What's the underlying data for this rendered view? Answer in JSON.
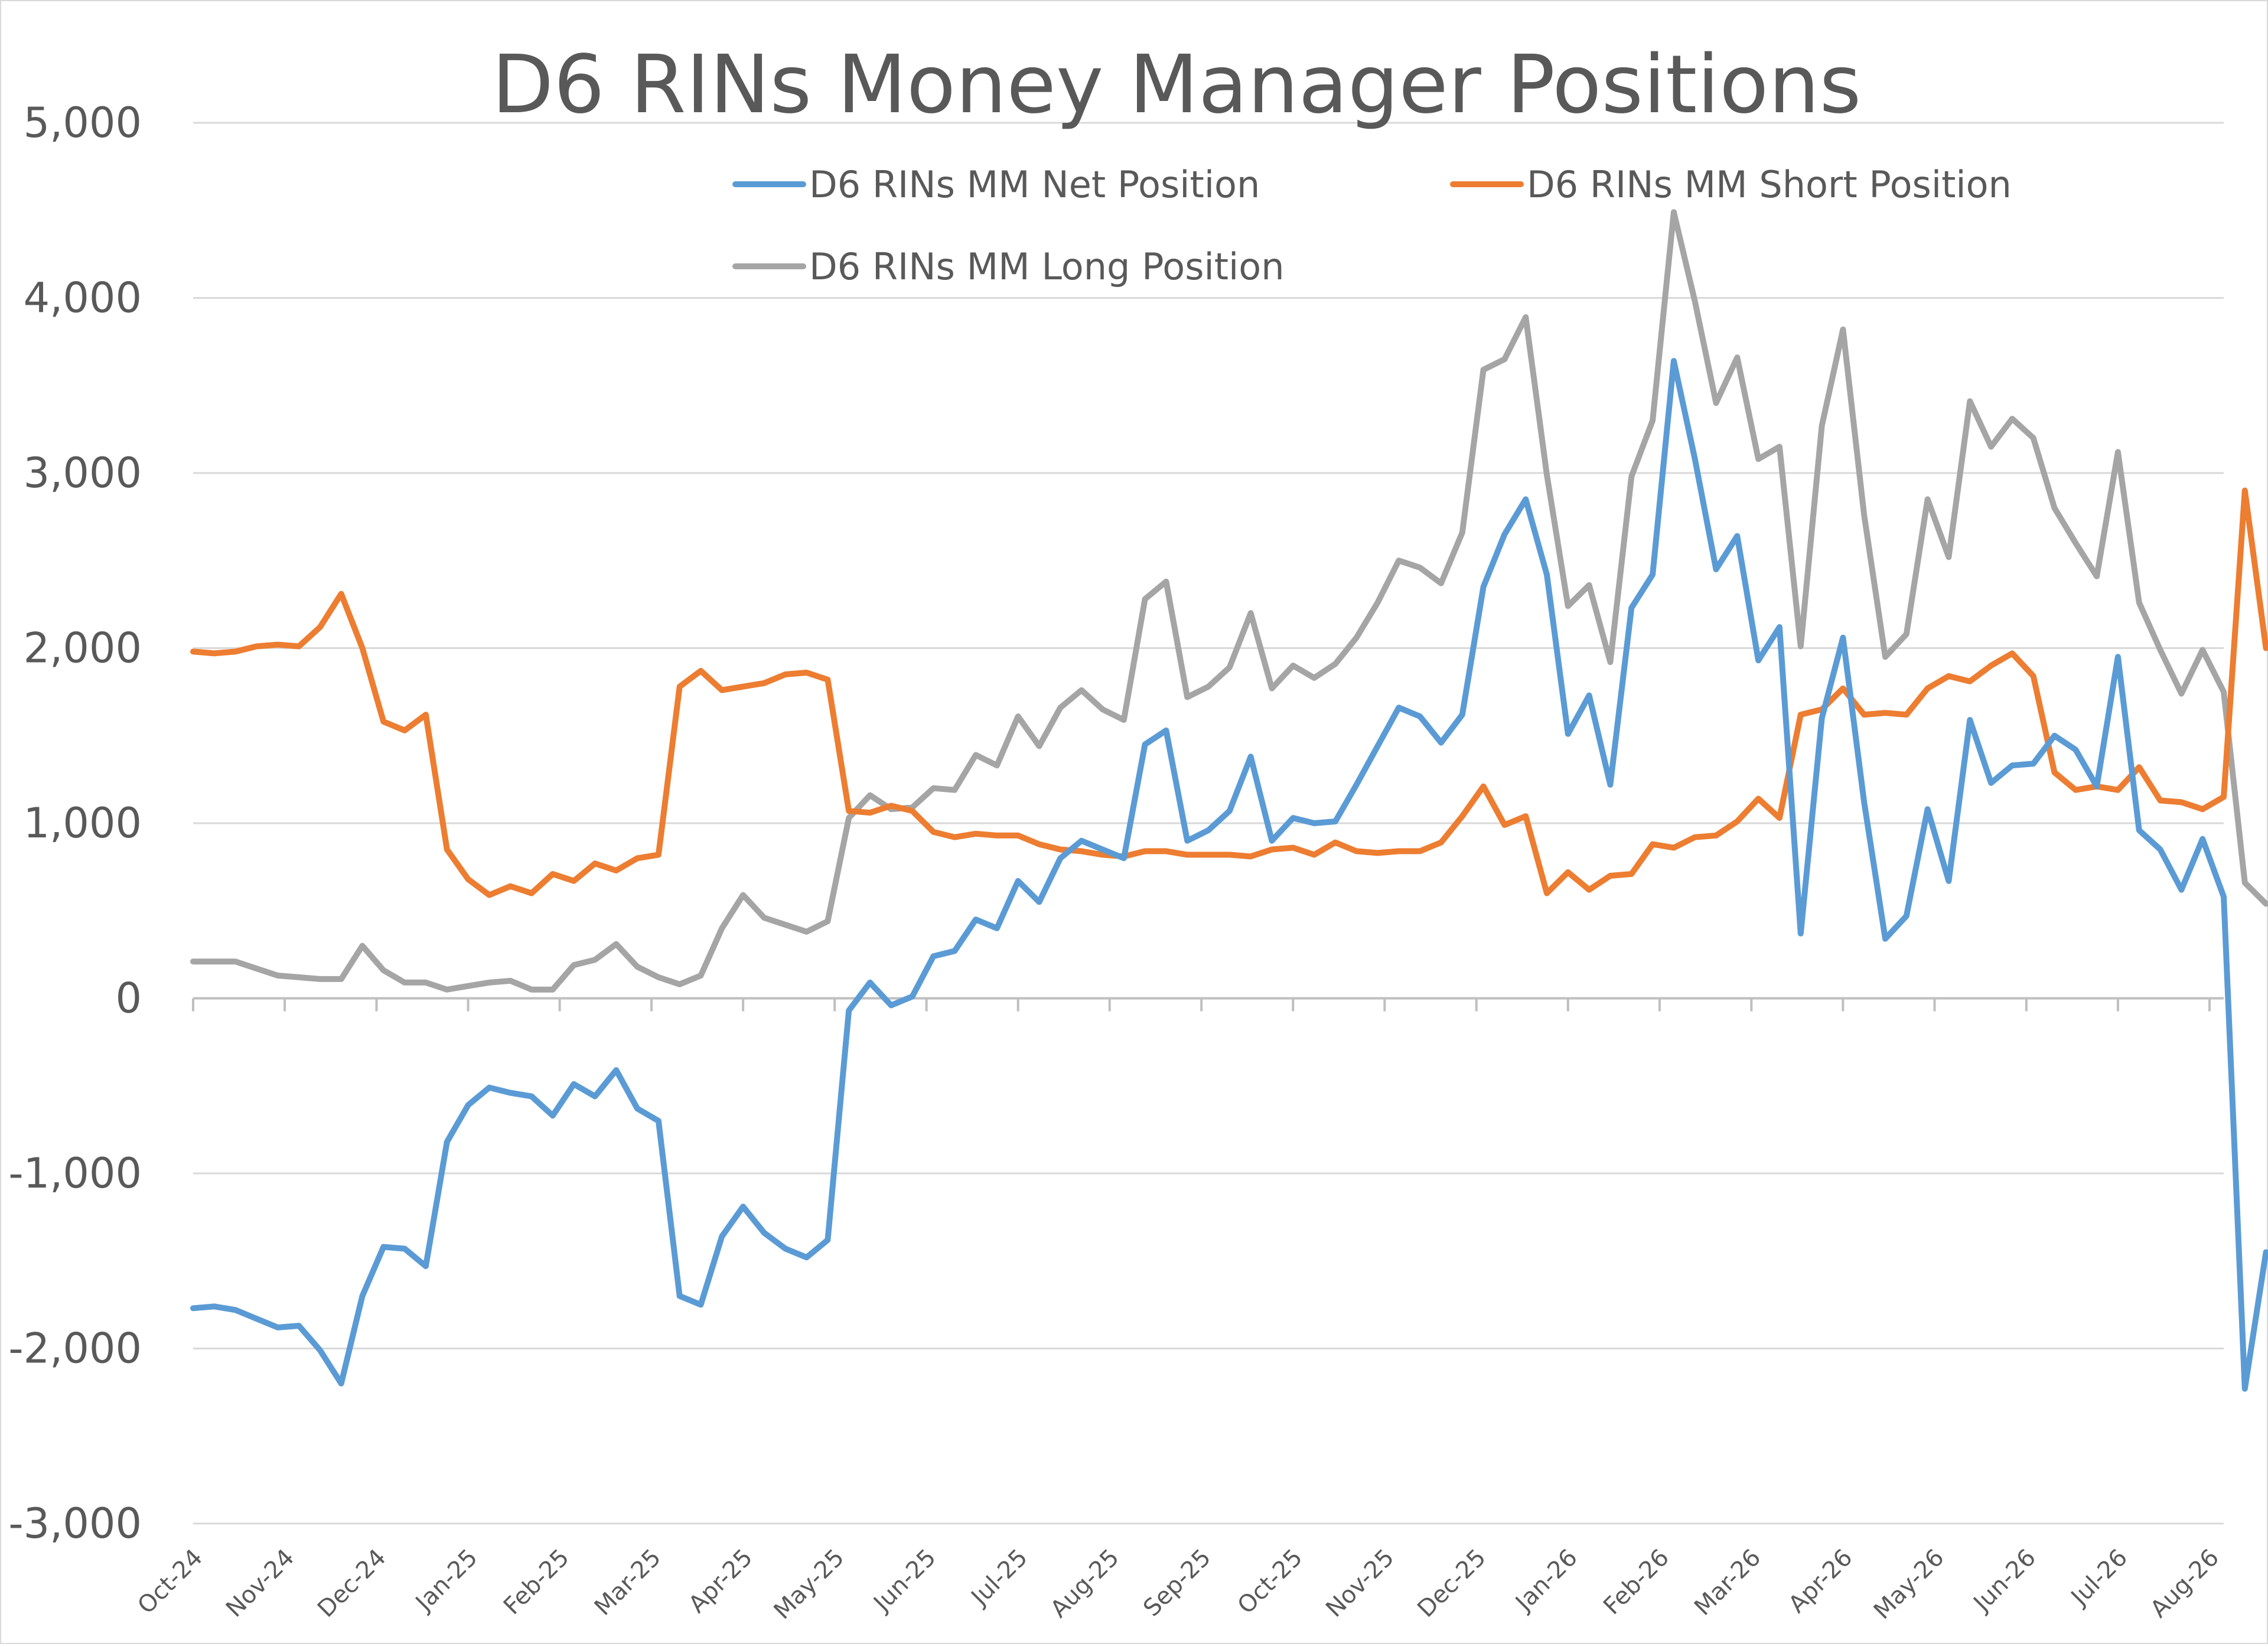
{
  "chart_data": {
    "type": "line",
    "title": "D6 RINs Money Manager Positions",
    "xlabel": "",
    "ylabel": "",
    "ylim": [
      -3000,
      5000
    ],
    "yticks": [
      5000,
      4000,
      3000,
      2000,
      1000,
      0,
      -1000,
      -2000,
      -3000
    ],
    "ytick_labels": [
      "5,000",
      "4,000",
      "3,000",
      "2,000",
      "1,000",
      "0",
      "-1,000",
      "-2,000",
      "-3,000"
    ],
    "x_tick_labels": [
      "Oct-24",
      "Nov-24",
      "Dec-24",
      "Jan-25",
      "Feb-25",
      "Mar-25",
      "Apr-25",
      "May-25",
      "Jun-25",
      "Jul-25",
      "Aug-25",
      "Sep-25",
      "Oct-25",
      "Nov-25",
      "Dec-25",
      "Jan-26",
      "Feb-26",
      "Mar-26",
      "Apr-26",
      "May-26",
      "Jun-26",
      "Jul-26",
      "Aug-26"
    ],
    "x_tick_positions": [
      0,
      4.33,
      8.67,
      13,
      17.33,
      21.67,
      26,
      30.33,
      34.67,
      39,
      43.33,
      47.67,
      52,
      56.33,
      60.67,
      65,
      69.33,
      73.67,
      78,
      82.33,
      86.67,
      91,
      95.33
    ],
    "x_points": 97,
    "grid": true,
    "legend_position": "top",
    "series": [
      {
        "name": "D6 RINs MM Net Position",
        "color": "#5b9bd5",
        "values": [
          -1770,
          -1760,
          -1780,
          -1830,
          -1880,
          -1870,
          -2010,
          -2200,
          -1700,
          -1420,
          -1430,
          -1530,
          -820,
          -610,
          -510,
          -540,
          -560,
          -670,
          -490,
          -560,
          -410,
          -630,
          -700,
          -1700,
          -1750,
          -1360,
          -1190,
          -1340,
          -1430,
          -1480,
          -1380,
          -70,
          90,
          -40,
          10,
          240,
          270,
          450,
          400,
          670,
          550,
          800,
          900,
          850,
          800,
          1450,
          1530,
          900,
          960,
          1070,
          1380,
          900,
          1030,
          1000,
          1010,
          1220,
          1440,
          1660,
          1610,
          1460,
          1620,
          2350,
          2650,
          2850,
          2420,
          1510,
          1730,
          1220,
          2230,
          2420,
          3640,
          3080,
          2450,
          2640,
          1930,
          2120,
          370,
          1600,
          2060,
          1120,
          340,
          470,
          1080,
          670,
          1590,
          1230,
          1330,
          1340,
          1500,
          1420,
          1210,
          1950,
          960,
          850,
          620,
          910,
          580,
          -2230,
          -1450
        ]
      },
      {
        "name": "D6 RINs MM Short Position",
        "color": "#ed7d31",
        "values": [
          1980,
          1970,
          1980,
          2010,
          2020,
          2010,
          2120,
          2310,
          2000,
          1580,
          1530,
          1620,
          850,
          680,
          590,
          640,
          600,
          710,
          670,
          770,
          730,
          800,
          820,
          1780,
          1870,
          1760,
          1780,
          1800,
          1850,
          1860,
          1820,
          1070,
          1060,
          1100,
          1070,
          950,
          920,
          940,
          930,
          930,
          880,
          850,
          840,
          820,
          810,
          840,
          840,
          820,
          820,
          820,
          810,
          850,
          860,
          820,
          890,
          840,
          830,
          840,
          840,
          890,
          1040,
          1210,
          990,
          1040,
          600,
          720,
          620,
          700,
          710,
          880,
          860,
          920,
          930,
          1010,
          1140,
          1030,
          1620,
          1650,
          1770,
          1620,
          1630,
          1620,
          1770,
          1840,
          1810,
          1900,
          1970,
          1840,
          1290,
          1190,
          1210,
          1190,
          1320,
          1130,
          1120,
          1080,
          1150,
          2900,
          2000
        ]
      },
      {
        "name": "D6 RINs MM Long Position",
        "color": "#a5a5a5",
        "values": [
          210,
          210,
          210,
          170,
          130,
          120,
          110,
          110,
          300,
          160,
          90,
          90,
          50,
          70,
          90,
          100,
          50,
          50,
          190,
          220,
          310,
          180,
          120,
          80,
          130,
          400,
          590,
          460,
          420,
          380,
          440,
          1030,
          1160,
          1080,
          1090,
          1200,
          1190,
          1390,
          1330,
          1610,
          1440,
          1660,
          1760,
          1650,
          1590,
          2280,
          2380,
          1720,
          1780,
          1890,
          2200,
          1770,
          1900,
          1830,
          1910,
          2060,
          2260,
          2500,
          2460,
          2370,
          2660,
          3590,
          3650,
          3890,
          2990,
          2240,
          2360,
          1920,
          2980,
          3300,
          4490,
          3980,
          3400,
          3660,
          3080,
          3150,
          2010,
          3270,
          3820,
          2760,
          1950,
          2080,
          2850,
          2520,
          3410,
          3150,
          3310,
          3200,
          2800,
          2600,
          2410,
          3120,
          2260,
          1990,
          1740,
          1990,
          1750,
          660,
          540
        ]
      }
    ]
  }
}
